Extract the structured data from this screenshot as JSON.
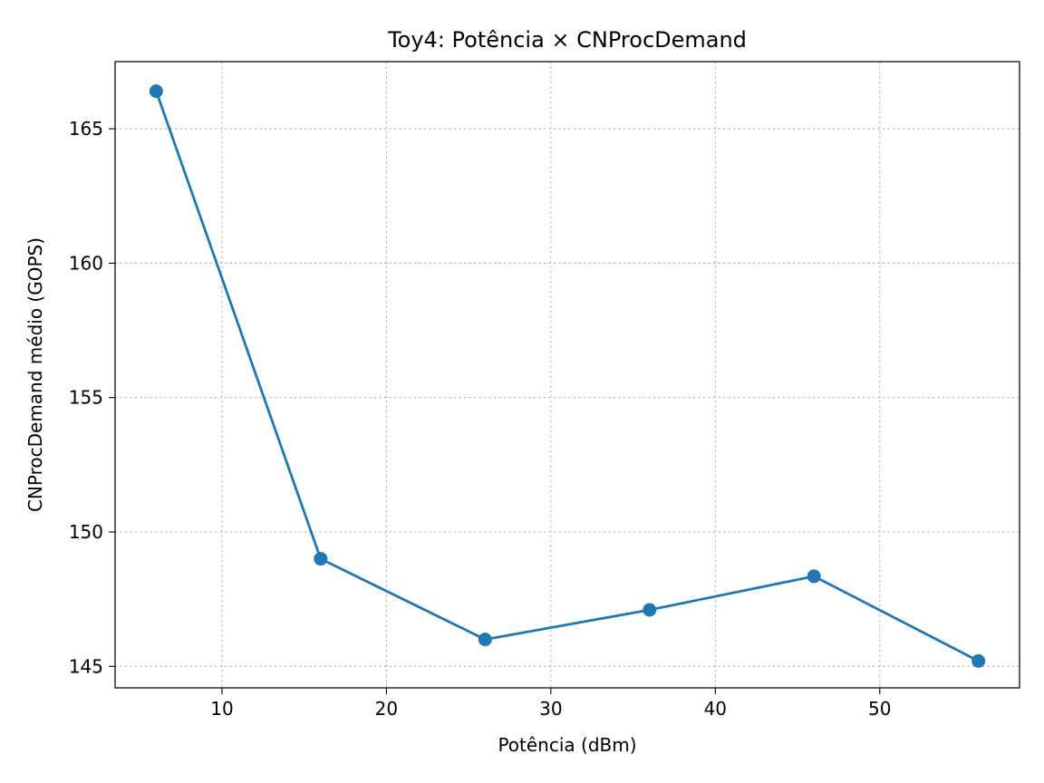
{
  "chart_data": {
    "type": "line",
    "title": "Toy4: Potência × CNProcDemand",
    "xlabel": "Potência (dBm)",
    "ylabel": "CNProcDemand médio (GOPS)",
    "xlim": [
      3.5,
      58.5
    ],
    "ylim": [
      144.2,
      167.5
    ],
    "xticks": [
      10,
      20,
      30,
      40,
      50
    ],
    "yticks": [
      145,
      150,
      155,
      160,
      165
    ],
    "grid": true,
    "series": [
      {
        "color": "#1f77b4",
        "marker": "circle",
        "x": [
          6,
          16,
          26,
          36,
          46,
          56
        ],
        "y": [
          166.4,
          149.0,
          146.0,
          147.1,
          148.35,
          145.2
        ]
      }
    ]
  }
}
